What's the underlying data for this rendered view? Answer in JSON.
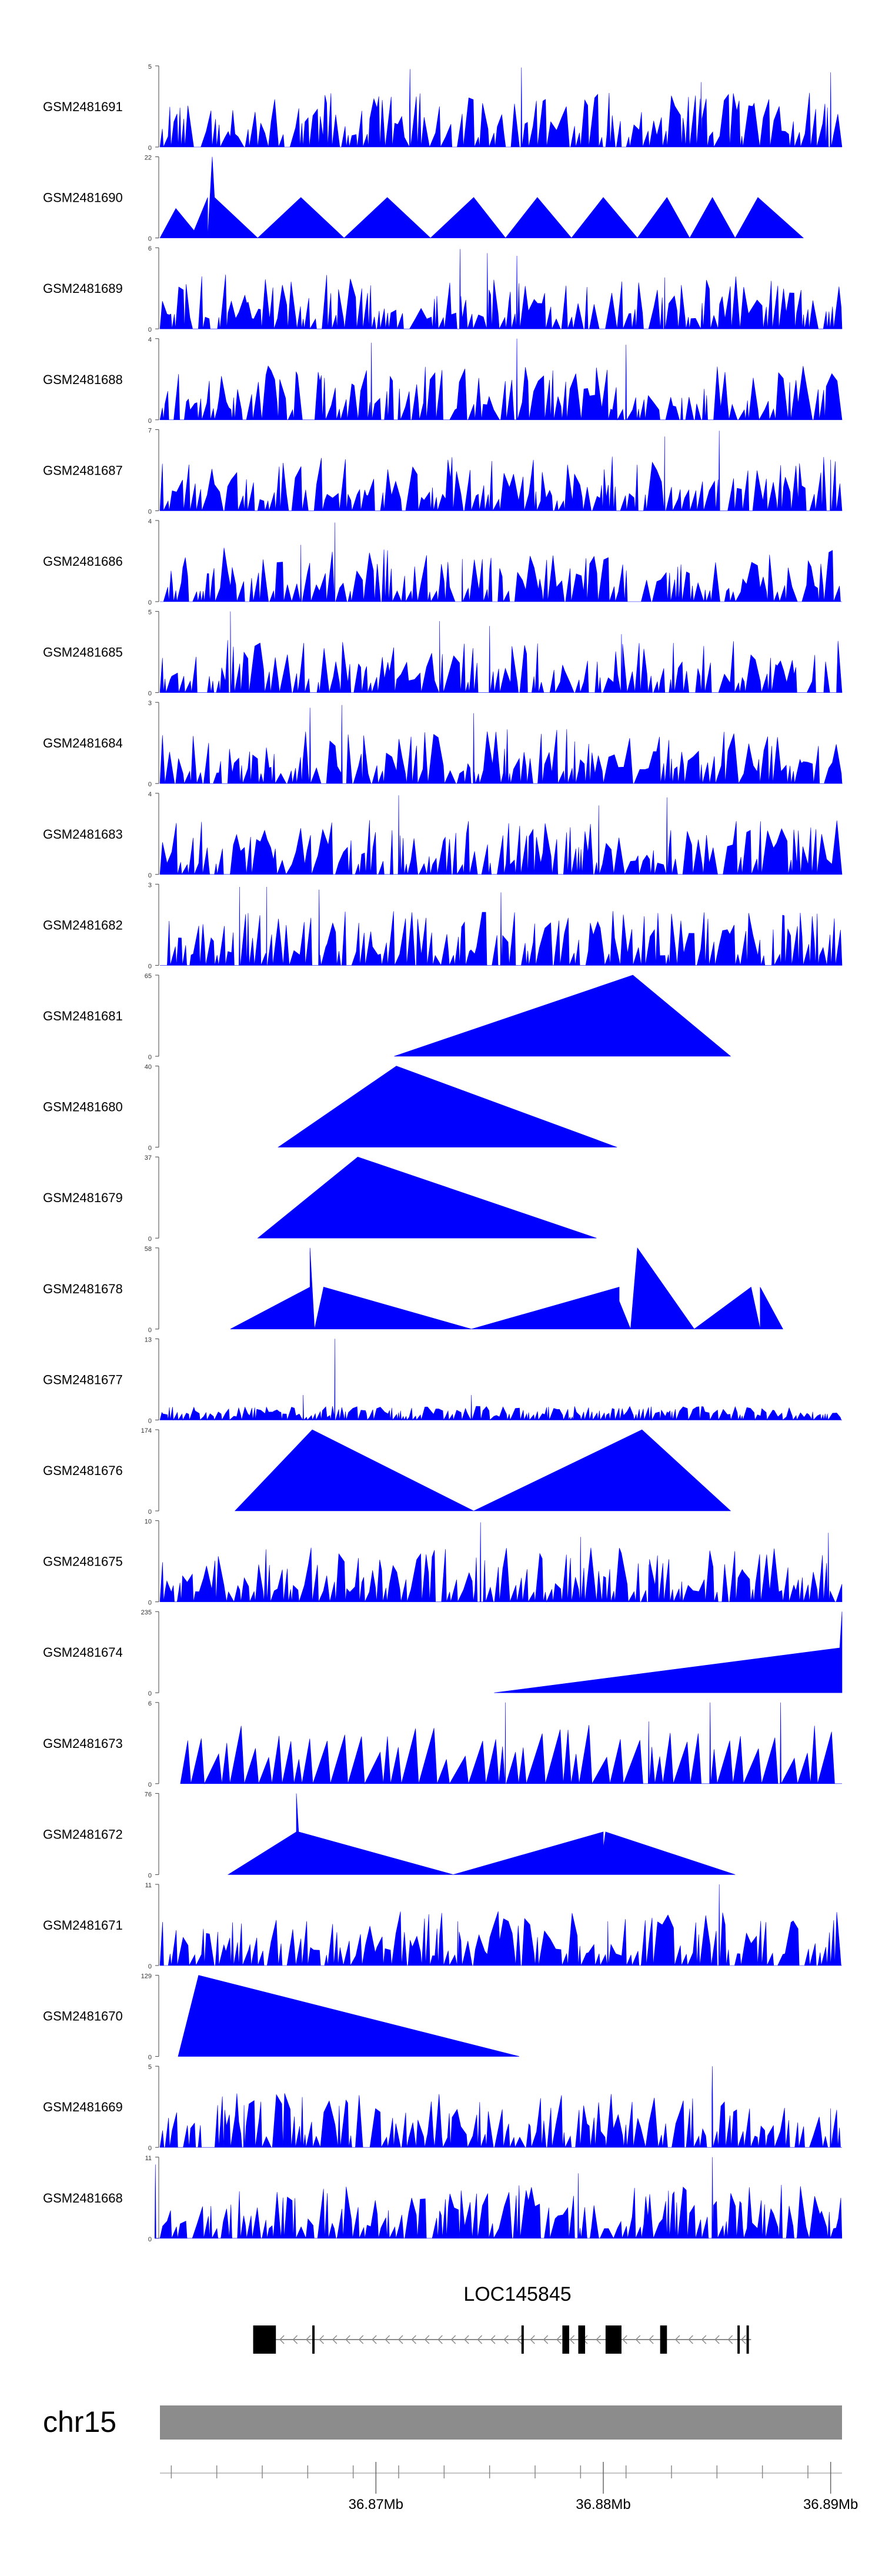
{
  "chart_data": {
    "type": "area",
    "title": "",
    "xlabel": "",
    "ylabel": "",
    "region": {
      "chromosome": "chr15",
      "xlim": [
        36.8605,
        36.8905
      ],
      "units": "Mb"
    },
    "x_ticks": [
      {
        "value": 36.87,
        "label": "36.87Mb"
      },
      {
        "value": 36.88,
        "label": "36.88Mb"
      },
      {
        "value": 36.89,
        "label": "36.89Mb"
      }
    ],
    "gene": {
      "name": "LOC145845",
      "strand": "-",
      "span": [
        36.8646,
        36.8865
      ],
      "exons": [
        [
          36.8646,
          36.8656
        ],
        [
          36.8672,
          36.8673
        ],
        [
          36.8764,
          36.8765
        ],
        [
          36.8782,
          36.8785
        ],
        [
          36.8789,
          36.8792
        ],
        [
          36.8801,
          36.8808
        ],
        [
          36.8825,
          36.8828
        ],
        [
          36.8859,
          36.886
        ],
        [
          36.8863,
          36.8864
        ]
      ]
    },
    "series": [
      {
        "name": "GSM2481691",
        "ylim": [
          0,
          5
        ],
        "seed": 11,
        "style": "dense",
        "peaks": [
          [
            36.8715,
            4.8
          ],
          [
            36.8764,
            4.9
          ],
          [
            36.8843,
            4.0
          ],
          [
            36.89,
            4.6
          ]
        ]
      },
      {
        "name": "GSM2481690",
        "ylim": [
          0,
          22
        ],
        "style": "points",
        "points": [
          [
            36.8605,
            0
          ],
          [
            36.8612,
            8
          ],
          [
            36.862,
            2
          ],
          [
            36.8626,
            11
          ],
          [
            36.8626,
            0
          ],
          [
            36.8628,
            22
          ],
          [
            36.8629,
            11
          ],
          [
            36.8648,
            0
          ],
          [
            36.8667,
            11
          ],
          [
            36.8686,
            0
          ],
          [
            36.8705,
            11
          ],
          [
            36.8724,
            0
          ],
          [
            36.8743,
            11
          ],
          [
            36.8757,
            0
          ],
          [
            36.8771,
            11
          ],
          [
            36.8786,
            0
          ],
          [
            36.88,
            11
          ],
          [
            36.8815,
            0
          ],
          [
            36.8828,
            11
          ],
          [
            36.8838,
            0
          ],
          [
            36.8848,
            11
          ],
          [
            36.8858,
            0
          ],
          [
            36.8868,
            11
          ],
          [
            36.8888,
            0
          ]
        ]
      },
      {
        "name": "GSM2481689",
        "ylim": [
          0,
          6
        ],
        "seed": 23,
        "style": "dense",
        "peaks": [
          [
            36.8737,
            5.9
          ],
          [
            36.8749,
            5.6
          ],
          [
            36.8762,
            5.4
          ],
          [
            36.8827,
            3.8
          ]
        ]
      },
      {
        "name": "GSM2481688",
        "ylim": [
          0,
          4
        ],
        "seed": 37,
        "style": "dense",
        "peaks": [
          [
            36.8698,
            3.8
          ],
          [
            36.8762,
            4.0
          ],
          [
            36.881,
            3.7
          ]
        ]
      },
      {
        "name": "GSM2481687",
        "ylim": [
          0,
          7
        ],
        "seed": 41,
        "style": "dense",
        "peaks": [
          [
            36.8827,
            6.4
          ],
          [
            36.8851,
            6.9
          ],
          [
            36.89,
            4.4
          ]
        ]
      },
      {
        "name": "GSM2481686",
        "ylim": [
          0,
          4
        ],
        "seed": 53,
        "style": "dense",
        "peaks": [
          [
            36.8682,
            3.9
          ],
          [
            36.8667,
            2.8
          ],
          [
            36.8738,
            2.1
          ]
        ]
      },
      {
        "name": "GSM2481685",
        "ylim": [
          0,
          5
        ],
        "seed": 67,
        "style": "dense",
        "peaks": [
          [
            36.8636,
            5.0
          ],
          [
            36.8728,
            4.4
          ],
          [
            36.875,
            4.1
          ],
          [
            36.8808,
            3.6
          ]
        ]
      },
      {
        "name": "GSM2481684",
        "ylim": [
          0,
          3
        ],
        "seed": 79,
        "style": "dense",
        "peaks": [
          [
            36.8671,
            2.8
          ],
          [
            36.8685,
            2.9
          ],
          [
            36.8743,
            2.6
          ]
        ]
      },
      {
        "name": "GSM2481683",
        "ylim": [
          0,
          4
        ],
        "seed": 83,
        "style": "dense",
        "peaks": [
          [
            36.871,
            3.9
          ],
          [
            36.8828,
            3.8
          ],
          [
            36.8798,
            3.4
          ]
        ]
      },
      {
        "name": "GSM2481682",
        "ylim": [
          0,
          3
        ],
        "seed": 97,
        "style": "dense",
        "peaks": [
          [
            36.864,
            2.9
          ],
          [
            36.8652,
            2.9
          ],
          [
            36.8675,
            2.8
          ],
          [
            36.8755,
            2.7
          ]
        ]
      },
      {
        "name": "GSM2481681",
        "ylim": [
          0,
          65
        ],
        "style": "points",
        "points": [
          [
            36.8708,
            0
          ],
          [
            36.8813,
            65
          ],
          [
            36.8856,
            0
          ]
        ]
      },
      {
        "name": "GSM2481680",
        "ylim": [
          0,
          40
        ],
        "style": "points",
        "points": [
          [
            36.8657,
            0
          ],
          [
            36.8709,
            40
          ],
          [
            36.8806,
            0
          ]
        ]
      },
      {
        "name": "GSM2481679",
        "ylim": [
          0,
          37
        ],
        "style": "points",
        "points": [
          [
            36.8648,
            0
          ],
          [
            36.8692,
            37
          ],
          [
            36.8797,
            0
          ]
        ]
      },
      {
        "name": "GSM2481678",
        "ylim": [
          0,
          58
        ],
        "style": "points",
        "points": [
          [
            36.8636,
            0
          ],
          [
            36.8671,
            30
          ],
          [
            36.8671,
            58
          ],
          [
            36.8673,
            0
          ],
          [
            36.8677,
            30
          ],
          [
            36.8742,
            0
          ],
          [
            36.8807,
            30
          ],
          [
            36.8807,
            20
          ],
          [
            36.8812,
            0
          ],
          [
            36.8815,
            58
          ],
          [
            36.884,
            0
          ],
          [
            36.8865,
            30
          ],
          [
            36.8869,
            0
          ],
          [
            36.8869,
            30
          ],
          [
            36.8879,
            0
          ]
        ]
      },
      {
        "name": "GSM2481677",
        "ylim": [
          0,
          13
        ],
        "seed": 109,
        "style": "noise",
        "peaks": [
          [
            36.8682,
            13
          ],
          [
            36.8668,
            4
          ],
          [
            36.8742,
            4
          ]
        ]
      },
      {
        "name": "GSM2481676",
        "ylim": [
          0,
          174
        ],
        "style": "points",
        "points": [
          [
            36.8638,
            0
          ],
          [
            36.8672,
            174
          ],
          [
            36.8743,
            0
          ],
          [
            36.8817,
            174
          ],
          [
            36.8856,
            0
          ]
        ]
      },
      {
        "name": "GSM2481675",
        "ylim": [
          0,
          10
        ],
        "seed": 127,
        "style": "dense",
        "peaks": [
          [
            36.8746,
            9.8
          ],
          [
            36.879,
            8.0
          ],
          [
            36.8899,
            8.5
          ],
          [
            36.882,
            4.6
          ]
        ]
      },
      {
        "name": "GSM2481674",
        "ylim": [
          0,
          235
        ],
        "style": "points",
        "points": [
          [
            36.8752,
            0
          ],
          [
            36.8904,
            130
          ],
          [
            36.8905,
            235
          ],
          [
            36.8905,
            0
          ]
        ]
      },
      {
        "name": "GSM2481673",
        "ylim": [
          0,
          6
        ],
        "seed": 131,
        "style": "sparse",
        "start": 36.8614,
        "peaks": [
          [
            36.8757,
            6.0
          ],
          [
            36.8847,
            6.0
          ],
          [
            36.8878,
            6.0
          ],
          [
            36.882,
            4.6
          ]
        ]
      },
      {
        "name": "GSM2481672",
        "ylim": [
          0,
          76
        ],
        "style": "points",
        "points": [
          [
            36.8635,
            0
          ],
          [
            36.8665,
            40
          ],
          [
            36.8665,
            76
          ],
          [
            36.8666,
            40
          ],
          [
            36.8734,
            0
          ],
          [
            36.88,
            40
          ],
          [
            36.88,
            25
          ],
          [
            36.8801,
            40
          ],
          [
            36.8858,
            0
          ]
        ]
      },
      {
        "name": "GSM2481671",
        "ylim": [
          0,
          11
        ],
        "seed": 149,
        "style": "dense",
        "peaks": [
          [
            36.8851,
            11
          ],
          [
            36.8736,
            6
          ],
          [
            36.8802,
            6
          ]
        ]
      },
      {
        "name": "GSM2481670",
        "ylim": [
          0,
          129
        ],
        "style": "points",
        "points": [
          [
            36.8613,
            0
          ],
          [
            36.8622,
            129
          ],
          [
            36.8763,
            0
          ]
        ]
      },
      {
        "name": "GSM2481669",
        "ylim": [
          0,
          5
        ],
        "seed": 157,
        "style": "dense",
        "peaks": [
          [
            36.8848,
            5.0
          ],
          [
            36.8642,
            2.6
          ],
          [
            36.89,
            2.4
          ]
        ]
      },
      {
        "name": "GSM2481668",
        "ylim": [
          0,
          11
        ],
        "seed": 167,
        "style": "dense",
        "peaks": [
          [
            36.8848,
            11
          ],
          [
            36.8603,
            10
          ],
          [
            36.8789,
            8.8
          ]
        ]
      }
    ]
  }
}
